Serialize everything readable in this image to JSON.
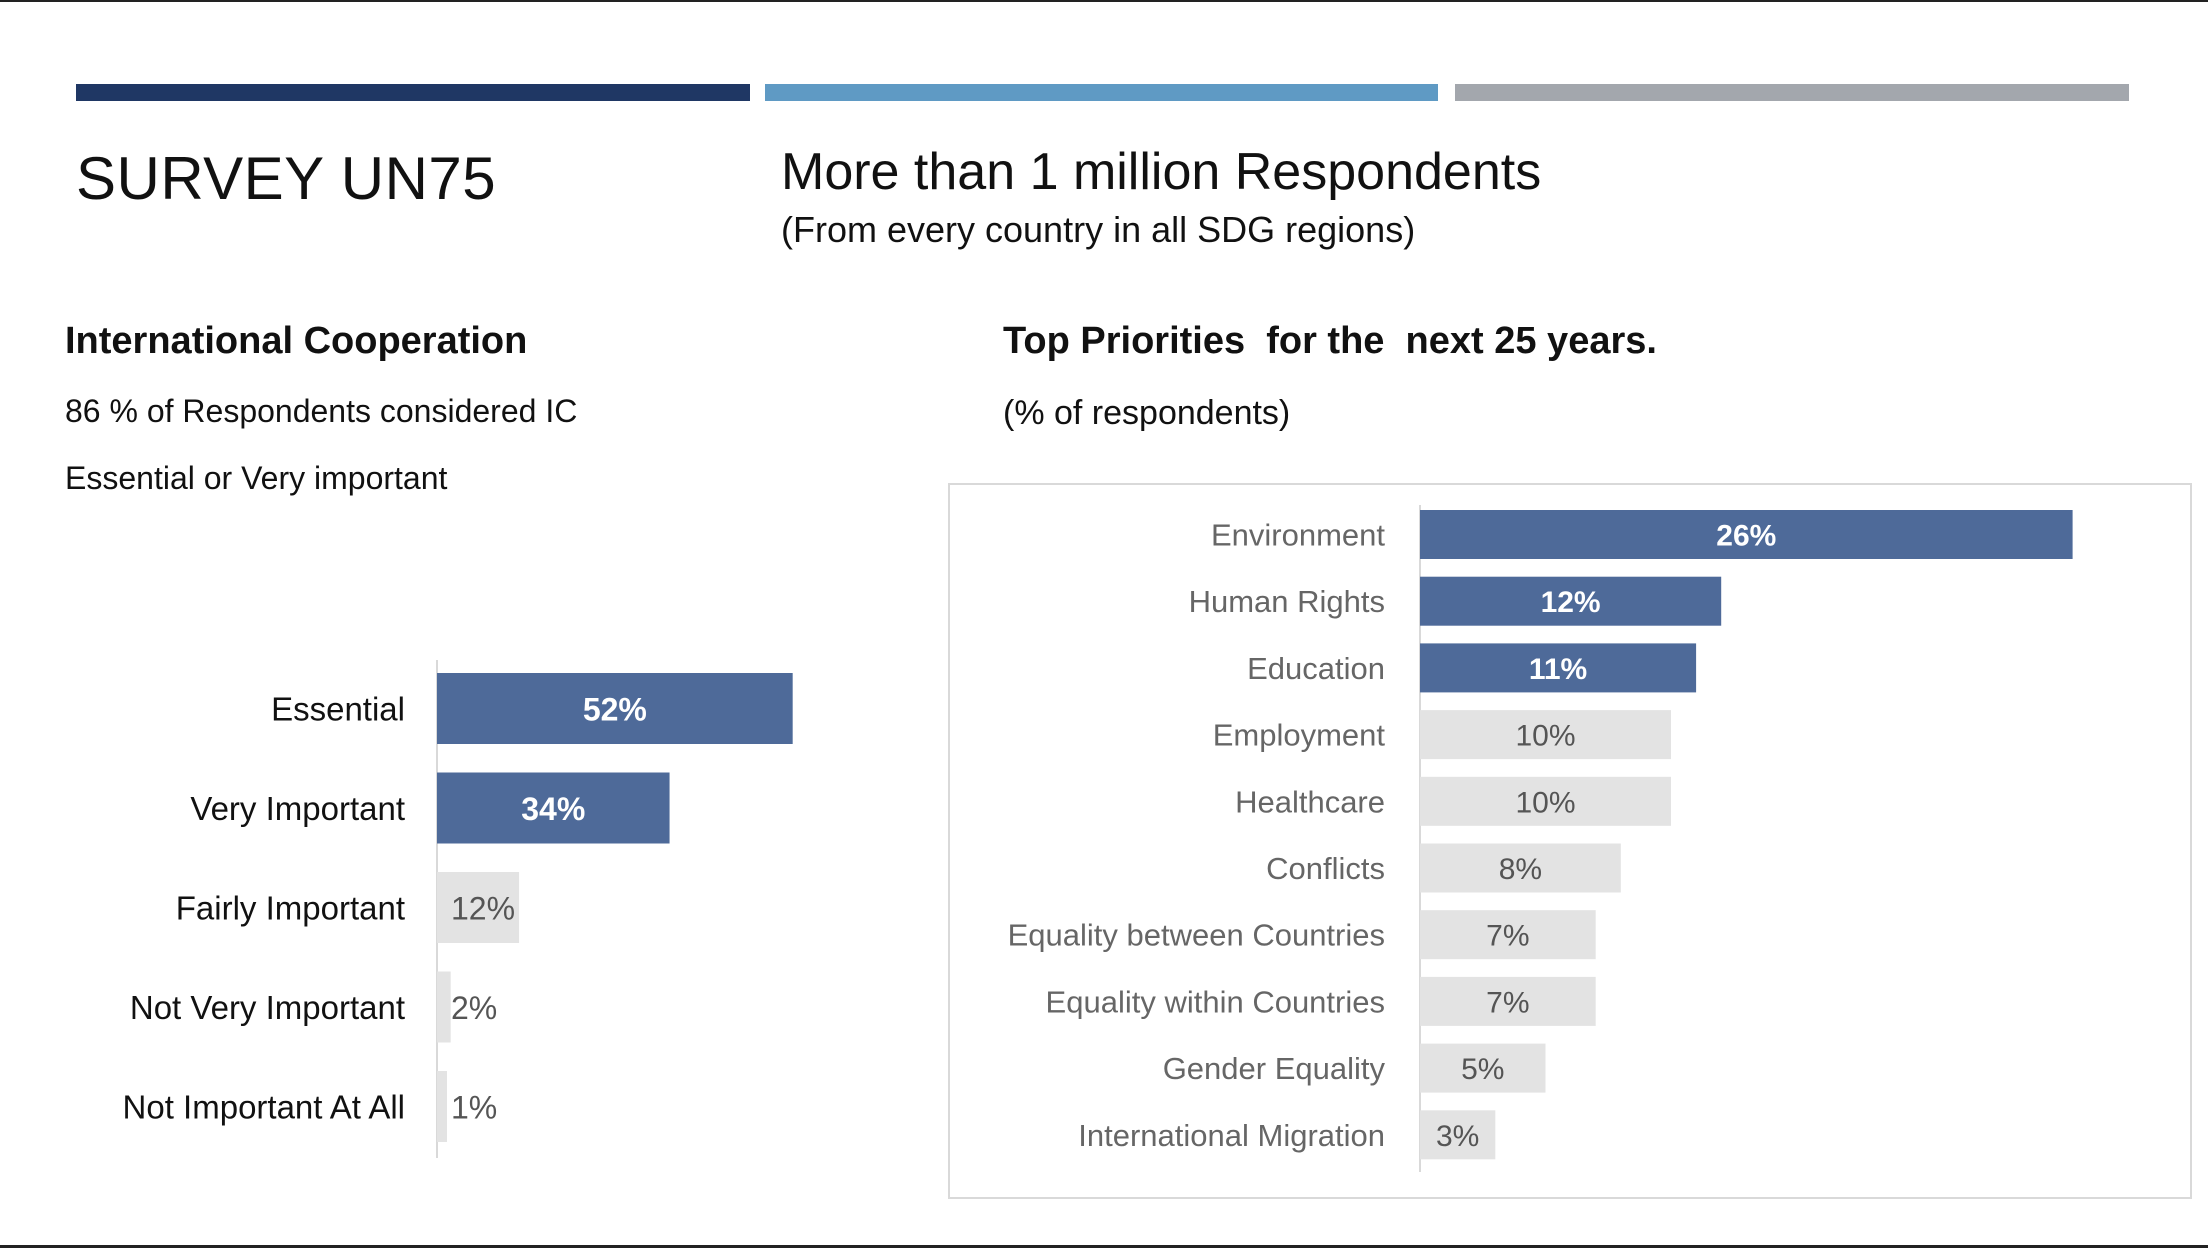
{
  "slide": {
    "title": "SURVEY UN75",
    "headline": "More than 1 million Respondents",
    "subheadline": "(From every country in all SDG regions)"
  },
  "left_panel": {
    "title": "International Cooperation",
    "text_line1": "86 % of Respondents considered IC",
    "text_line2": "Essential or Very important"
  },
  "right_panel": {
    "title": "Top Priorities  for the  next 25 years.",
    "subtitle": "(% of respondents)"
  },
  "colors": {
    "highlight": "#4e6a99",
    "muted": "#e3e3e3",
    "highlight_label": "#ffffff",
    "muted_label": "#555555",
    "left_category_text": "#111111",
    "right_category_text": "#666666"
  },
  "chart_data": [
    {
      "type": "bar",
      "orientation": "horizontal",
      "categories": [
        "Essential",
        "Very Important",
        "Fairly Important",
        "Not Very Important",
        "Not Important At All"
      ],
      "values": [
        52,
        34,
        12,
        2,
        1
      ],
      "labels": [
        "52%",
        "34%",
        "12%",
        "2%",
        "1%"
      ],
      "highlighted": [
        true,
        true,
        false,
        false,
        false
      ],
      "unit": "%",
      "xlim": [
        0,
        100
      ]
    },
    {
      "type": "bar",
      "orientation": "horizontal",
      "categories": [
        "Environment",
        "Human Rights",
        "Education",
        "Employment",
        "Healthcare",
        "Conflicts",
        "Equality between Countries",
        "Equality within Countries",
        "Gender Equality",
        "International Migration"
      ],
      "values": [
        26,
        12,
        11,
        10,
        10,
        8,
        7,
        7,
        5,
        3
      ],
      "labels": [
        "26%",
        "12%",
        "11%",
        "10%",
        "10%",
        "8%",
        "7%",
        "7%",
        "5%",
        "3%"
      ],
      "highlighted": [
        true,
        true,
        true,
        false,
        false,
        false,
        false,
        false,
        false,
        false
      ],
      "unit": "%"
    }
  ]
}
